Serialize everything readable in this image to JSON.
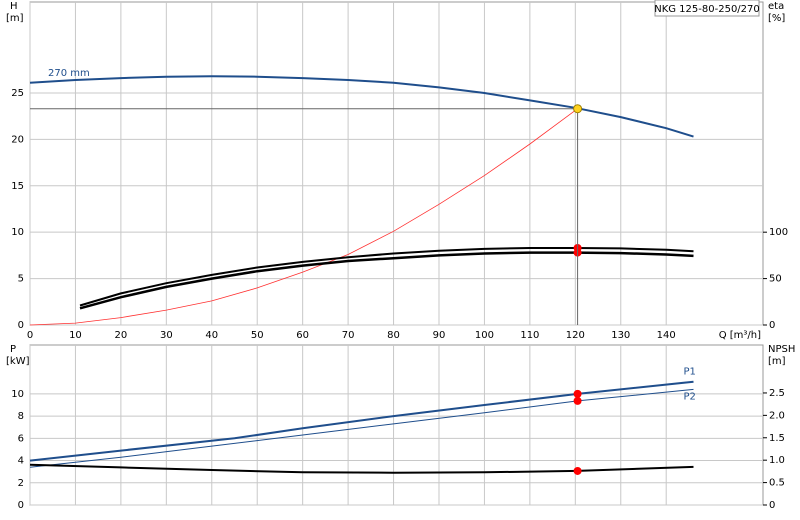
{
  "chart_data": [
    {
      "type": "line",
      "title": "NKG 125-80-250/270",
      "x_label": "Q [m³/h]",
      "y_label": "H",
      "y_unit": "[m]",
      "y2_label": "eta",
      "y2_unit": "[%]",
      "xlim": [
        0,
        161.3
      ],
      "xticks": [
        0,
        10,
        20,
        30,
        40,
        50,
        60,
        70,
        80,
        90,
        100,
        110,
        120,
        130,
        140
      ],
      "xtick_labels": true,
      "ylim": [
        0,
        34.8
      ],
      "yticks": [
        0,
        5,
        10,
        15,
        20,
        25
      ],
      "y2lim": [
        0,
        348
      ],
      "y2ticks": [
        0,
        50,
        100
      ],
      "grid": true,
      "series": [
        {
          "name": "270 mm",
          "label_position": "start",
          "color": "#1f4e8c",
          "width": 2,
          "x": [
            0,
            10,
            20,
            30,
            40,
            50,
            60,
            70,
            80,
            90,
            100,
            110,
            120,
            130,
            140,
            146
          ],
          "values": [
            26.1,
            26.4,
            26.6,
            26.75,
            26.8,
            26.75,
            26.6,
            26.4,
            26.1,
            25.6,
            25.0,
            24.2,
            23.4,
            22.4,
            21.2,
            20.3
          ]
        },
        {
          "color": "#ff3030",
          "width": 0.8,
          "x": [
            0,
            10,
            20,
            30,
            40,
            50,
            60,
            70,
            80,
            90,
            100,
            110,
            120.5
          ],
          "values": [
            0,
            0.2,
            0.8,
            1.6,
            2.6,
            4.0,
            5.7,
            7.6,
            10.1,
            13.0,
            16.1,
            19.5,
            23.3
          ]
        },
        {
          "color": "#000000",
          "width": 2,
          "axis": "y2",
          "x": [
            11,
            20,
            30,
            40,
            50,
            60,
            70,
            80,
            90,
            100,
            110,
            120,
            130,
            140,
            146
          ],
          "values": [
            21,
            34,
            45,
            54,
            62,
            68,
            73,
            77,
            80,
            82,
            83,
            83,
            82.5,
            81,
            79.5
          ]
        },
        {
          "color": "#000000",
          "width": 2.5,
          "axis": "y2",
          "x": [
            11,
            20,
            30,
            40,
            50,
            60,
            70,
            80,
            90,
            100,
            110,
            120,
            130,
            140,
            146
          ],
          "values": [
            18,
            30,
            41,
            50,
            58,
            64,
            69,
            72,
            75,
            77,
            78,
            78,
            77.5,
            76,
            74.5
          ]
        },
        {
          "color": "#ff0000",
          "marker": true,
          "axis": "y2",
          "x": [
            120.5,
            120.5
          ],
          "values": [
            83,
            78
          ]
        },
        {
          "color": "#ffd21f",
          "marker": true,
          "duty": true,
          "x": [
            120.5
          ],
          "values": [
            23.3
          ]
        }
      ]
    },
    {
      "type": "line",
      "y_label": "P",
      "y_unit": "[kW]",
      "y2_label": "NPSH",
      "y2_unit": "[m]",
      "xlim": [
        0,
        161.3
      ],
      "xticks": [
        0,
        10,
        20,
        30,
        40,
        50,
        60,
        70,
        80,
        90,
        100,
        110,
        120,
        130,
        140
      ],
      "xtick_labels": false,
      "ylim": [
        0,
        14.4
      ],
      "yticks": [
        0,
        2,
        4,
        6,
        8,
        10
      ],
      "y2lim": [
        0,
        3.57
      ],
      "y2ticks": [
        0,
        {
          "value": 0.5,
          "label": "0.5"
        },
        {
          "value": 1,
          "label": "1.0"
        },
        {
          "value": 1.5,
          "label": "1.5"
        },
        {
          "value": 2,
          "label": "2.0"
        },
        {
          "value": 2.5,
          "label": "2.5"
        }
      ],
      "grid": true,
      "series": [
        {
          "name": "P1",
          "label_position": "end-above",
          "color": "#1f4e8c",
          "width": 2,
          "x": [
            0,
            20,
            45,
            60,
            80,
            100,
            120.5,
            146
          ],
          "values": [
            4.0,
            4.9,
            6.0,
            6.9,
            8.0,
            9.0,
            10.0,
            11.1
          ]
        },
        {
          "name": "P2",
          "label_position": "end-below",
          "color": "#1f4e8c",
          "width": 1,
          "x": [
            0,
            20,
            40,
            60,
            80,
            100,
            120.5,
            146
          ],
          "values": [
            3.4,
            4.3,
            5.3,
            6.3,
            7.3,
            8.3,
            9.37,
            10.4
          ]
        },
        {
          "color": "#000000",
          "width": 2,
          "axis": "y2",
          "x": [
            0,
            20,
            40,
            60,
            80,
            100,
            120.5,
            146
          ],
          "values": [
            0.9,
            0.84,
            0.78,
            0.73,
            0.72,
            0.73,
            0.76,
            0.85
          ]
        },
        {
          "color": "#ff0000",
          "marker": true,
          "x": [
            120.5,
            120.5
          ],
          "values": [
            10.0,
            9.37
          ]
        },
        {
          "color": "#ff0000",
          "marker": true,
          "axis": "y2",
          "x": [
            120.5
          ],
          "values": [
            0.76
          ]
        }
      ]
    }
  ]
}
